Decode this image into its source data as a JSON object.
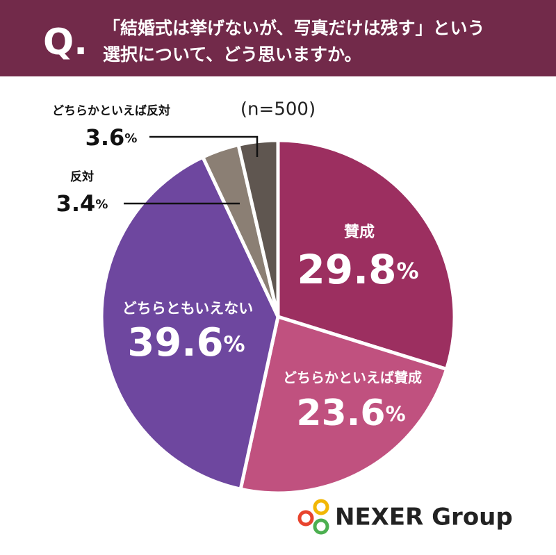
{
  "header": {
    "q_mark": "Q.",
    "question_lines": [
      "「結婚式は挙げないが、写真だけは残す」という",
      "選択について、どう思いますか。"
    ]
  },
  "chart_data": {
    "type": "pie",
    "subtitle": "(n=500)",
    "unit": "%",
    "categories": [
      "賛成",
      "どちらかといえば賛成",
      "どちらともいえない",
      "反対",
      "どちらかといえば反対"
    ],
    "values": [
      29.8,
      23.6,
      39.6,
      3.4,
      3.6
    ],
    "colors": [
      "#9c2f60",
      "#c0517f",
      "#6e479f",
      "#8b7f74",
      "#5f5650"
    ]
  },
  "logo": {
    "text": "NEXER Group"
  }
}
